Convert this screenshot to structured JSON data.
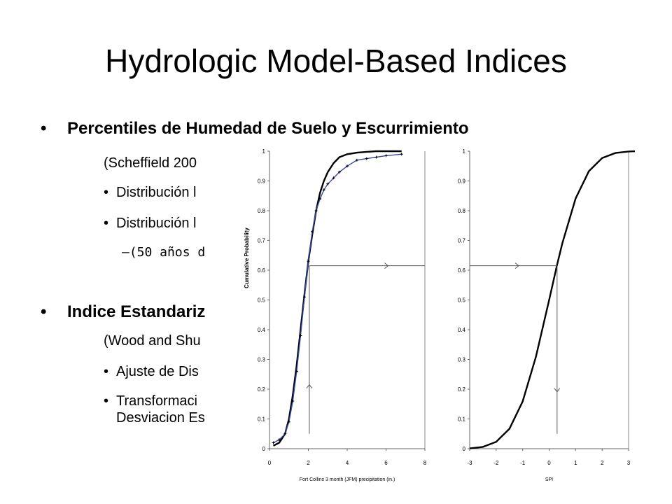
{
  "slide": {
    "title": "Hydrologic Model-Based Indices",
    "bullets": [
      {
        "level": 1,
        "text": "Percentiles de Humedad de Suelo y Escurrimiento"
      },
      {
        "level": 2,
        "text": "(Scheffield 200"
      },
      {
        "level": 2,
        "bullet": "•",
        "text": "Distribución l"
      },
      {
        "level": 2,
        "bullet": "•",
        "text": "Distribución l"
      },
      {
        "level": 3,
        "text": "–(50 años d"
      },
      {
        "level": 1,
        "text": "Indice Estandariz"
      },
      {
        "level": 2,
        "text": "(Wood and Shu"
      },
      {
        "level": 2,
        "bullet": "•",
        "text": "Ajuste de Dis"
      },
      {
        "level": 2,
        "bullet": "•",
        "text": "Transformaci"
      },
      {
        "level": 2,
        "text": "Desviacion Es"
      }
    ]
  },
  "chart_data": [
    {
      "type": "line",
      "title": "",
      "xlabel": "Fort Collins 3 month (JFM) precipitation (in.)",
      "ylabel": "Cumulative Probability",
      "xlim": [
        0,
        8
      ],
      "ylim": [
        0,
        1
      ],
      "xticks": [
        "0",
        "2",
        "4",
        "6",
        "8"
      ],
      "yticks": [
        "0",
        "0.1",
        "0.2",
        "0.3",
        "0.4",
        "0.5",
        "0.6",
        "0.7",
        "0.8",
        "0.9",
        "1"
      ],
      "grid": false,
      "series": [
        {
          "color": "#000000",
          "x": [
            0.2,
            0.5,
            0.8,
            1.0,
            1.2,
            1.4,
            1.6,
            1.8,
            2.0,
            2.2,
            2.4,
            2.6,
            2.8,
            3.0,
            3.3,
            3.6,
            4.0,
            4.5,
            5.0,
            5.5,
            6.0,
            6.8
          ],
          "y": [
            0.01,
            0.02,
            0.05,
            0.1,
            0.18,
            0.28,
            0.4,
            0.52,
            0.63,
            0.72,
            0.8,
            0.86,
            0.9,
            0.93,
            0.96,
            0.98,
            0.99,
            0.995,
            0.998,
            1.0,
            1.0,
            1.0
          ]
        },
        {
          "color": "#3a4aa8",
          "x": [
            0.2,
            0.5,
            0.8,
            1.0,
            1.2,
            1.4,
            1.6,
            1.8,
            2.0,
            2.2,
            2.4,
            2.6,
            2.8,
            3.0,
            3.3,
            3.6,
            4.0,
            4.5,
            5.0,
            5.5,
            6.0,
            6.8
          ],
          "y": [
            0.02,
            0.03,
            0.05,
            0.09,
            0.16,
            0.26,
            0.38,
            0.51,
            0.63,
            0.73,
            0.8,
            0.84,
            0.87,
            0.89,
            0.91,
            0.93,
            0.95,
            0.97,
            0.975,
            0.98,
            0.985,
            0.99
          ]
        }
      ],
      "annotations": [
        {
          "type": "vertical-arrow",
          "x": 2.05,
          "from": 0.05,
          "to": 0.615
        },
        {
          "type": "horizontal-line",
          "y": 0.615
        }
      ]
    },
    {
      "type": "line",
      "title": "",
      "xlabel": "SPI",
      "ylabel": "",
      "xlim": [
        -3,
        3
      ],
      "ylim": [
        0,
        1
      ],
      "xticks": [
        "-3",
        "-2",
        "-1",
        "0",
        "1",
        "2",
        "3"
      ],
      "yticks": [
        "0",
        "0.1",
        "0.2",
        "0.3",
        "0.4",
        "0.5",
        "0.6",
        "0.7",
        "0.8",
        "0.9",
        "1"
      ],
      "grid": false,
      "series": [
        {
          "color": "#000000",
          "x": [
            -3.0,
            -2.5,
            -2.0,
            -1.5,
            -1.0,
            -0.5,
            0.0,
            0.3,
            0.5,
            1.0,
            1.5,
            2.0,
            2.5,
            3.0,
            3.3
          ],
          "y": [
            0.001,
            0.006,
            0.023,
            0.067,
            0.159,
            0.309,
            0.5,
            0.618,
            0.691,
            0.841,
            0.933,
            0.977,
            0.994,
            0.999,
            1.0
          ]
        }
      ],
      "annotations": [
        {
          "type": "horizontal-arrow",
          "y": 0.615
        },
        {
          "type": "vertical-arrow",
          "x": 0.3,
          "from": 0.615,
          "to": 0.05
        }
      ]
    }
  ]
}
